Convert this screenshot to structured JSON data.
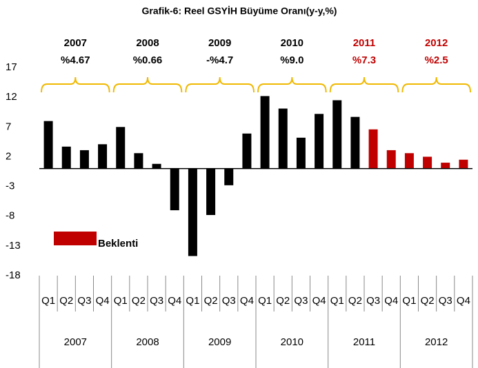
{
  "chart_data": {
    "type": "bar",
    "title": "Grafik-6: Reel GSYİH Büyüme Oranı(y-y,%)",
    "categories": [
      "Q1",
      "Q2",
      "Q3",
      "Q4",
      "Q1",
      "Q2",
      "Q3",
      "Q4",
      "Q1",
      "Q2",
      "Q3",
      "Q4",
      "Q1",
      "Q2",
      "Q3",
      "Q4",
      "Q1",
      "Q2",
      "Q3",
      "Q4",
      "Q1",
      "Q2",
      "Q3",
      "Q4"
    ],
    "groups": [
      "2007",
      "2008",
      "2009",
      "2010",
      "2011",
      "2012"
    ],
    "values": [
      8.0,
      3.7,
      3.1,
      4.1,
      7.0,
      2.6,
      0.8,
      -7.0,
      -14.7,
      -7.8,
      -2.8,
      5.9,
      12.2,
      10.1,
      5.2,
      9.2,
      11.5,
      8.7,
      6.6,
      3.1,
      2.6,
      2.0,
      1.0,
      1.5
    ],
    "bar_colors": [
      "#000000",
      "#000000",
      "#000000",
      "#000000",
      "#000000",
      "#000000",
      "#000000",
      "#000000",
      "#000000",
      "#000000",
      "#000000",
      "#000000",
      "#000000",
      "#000000",
      "#000000",
      "#000000",
      "#000000",
      "#000000",
      "#c00000",
      "#c00000",
      "#c00000",
      "#c00000",
      "#c00000",
      "#c00000"
    ],
    "legend": {
      "name": "Beklenti",
      "color": "#c00000"
    },
    "annotations": [
      {
        "year": "2007",
        "label": "%4.67",
        "color": "#000000"
      },
      {
        "year": "2008",
        "label": "%0.66",
        "color": "#000000"
      },
      {
        "year": "2009",
        "label": "-%4.7",
        "color": "#000000"
      },
      {
        "year": "2010",
        "label": "%9.0",
        "color": "#000000"
      },
      {
        "year": "2011",
        "label": "%7.3",
        "color": "#c00000"
      },
      {
        "year": "2012",
        "label": "%2.5",
        "color": "#c00000"
      }
    ],
    "brace_color": "#f0b800",
    "ylim": [
      -18,
      17
    ],
    "yticks": [
      17,
      12,
      7,
      2,
      -3,
      -8,
      -13,
      -18
    ]
  }
}
